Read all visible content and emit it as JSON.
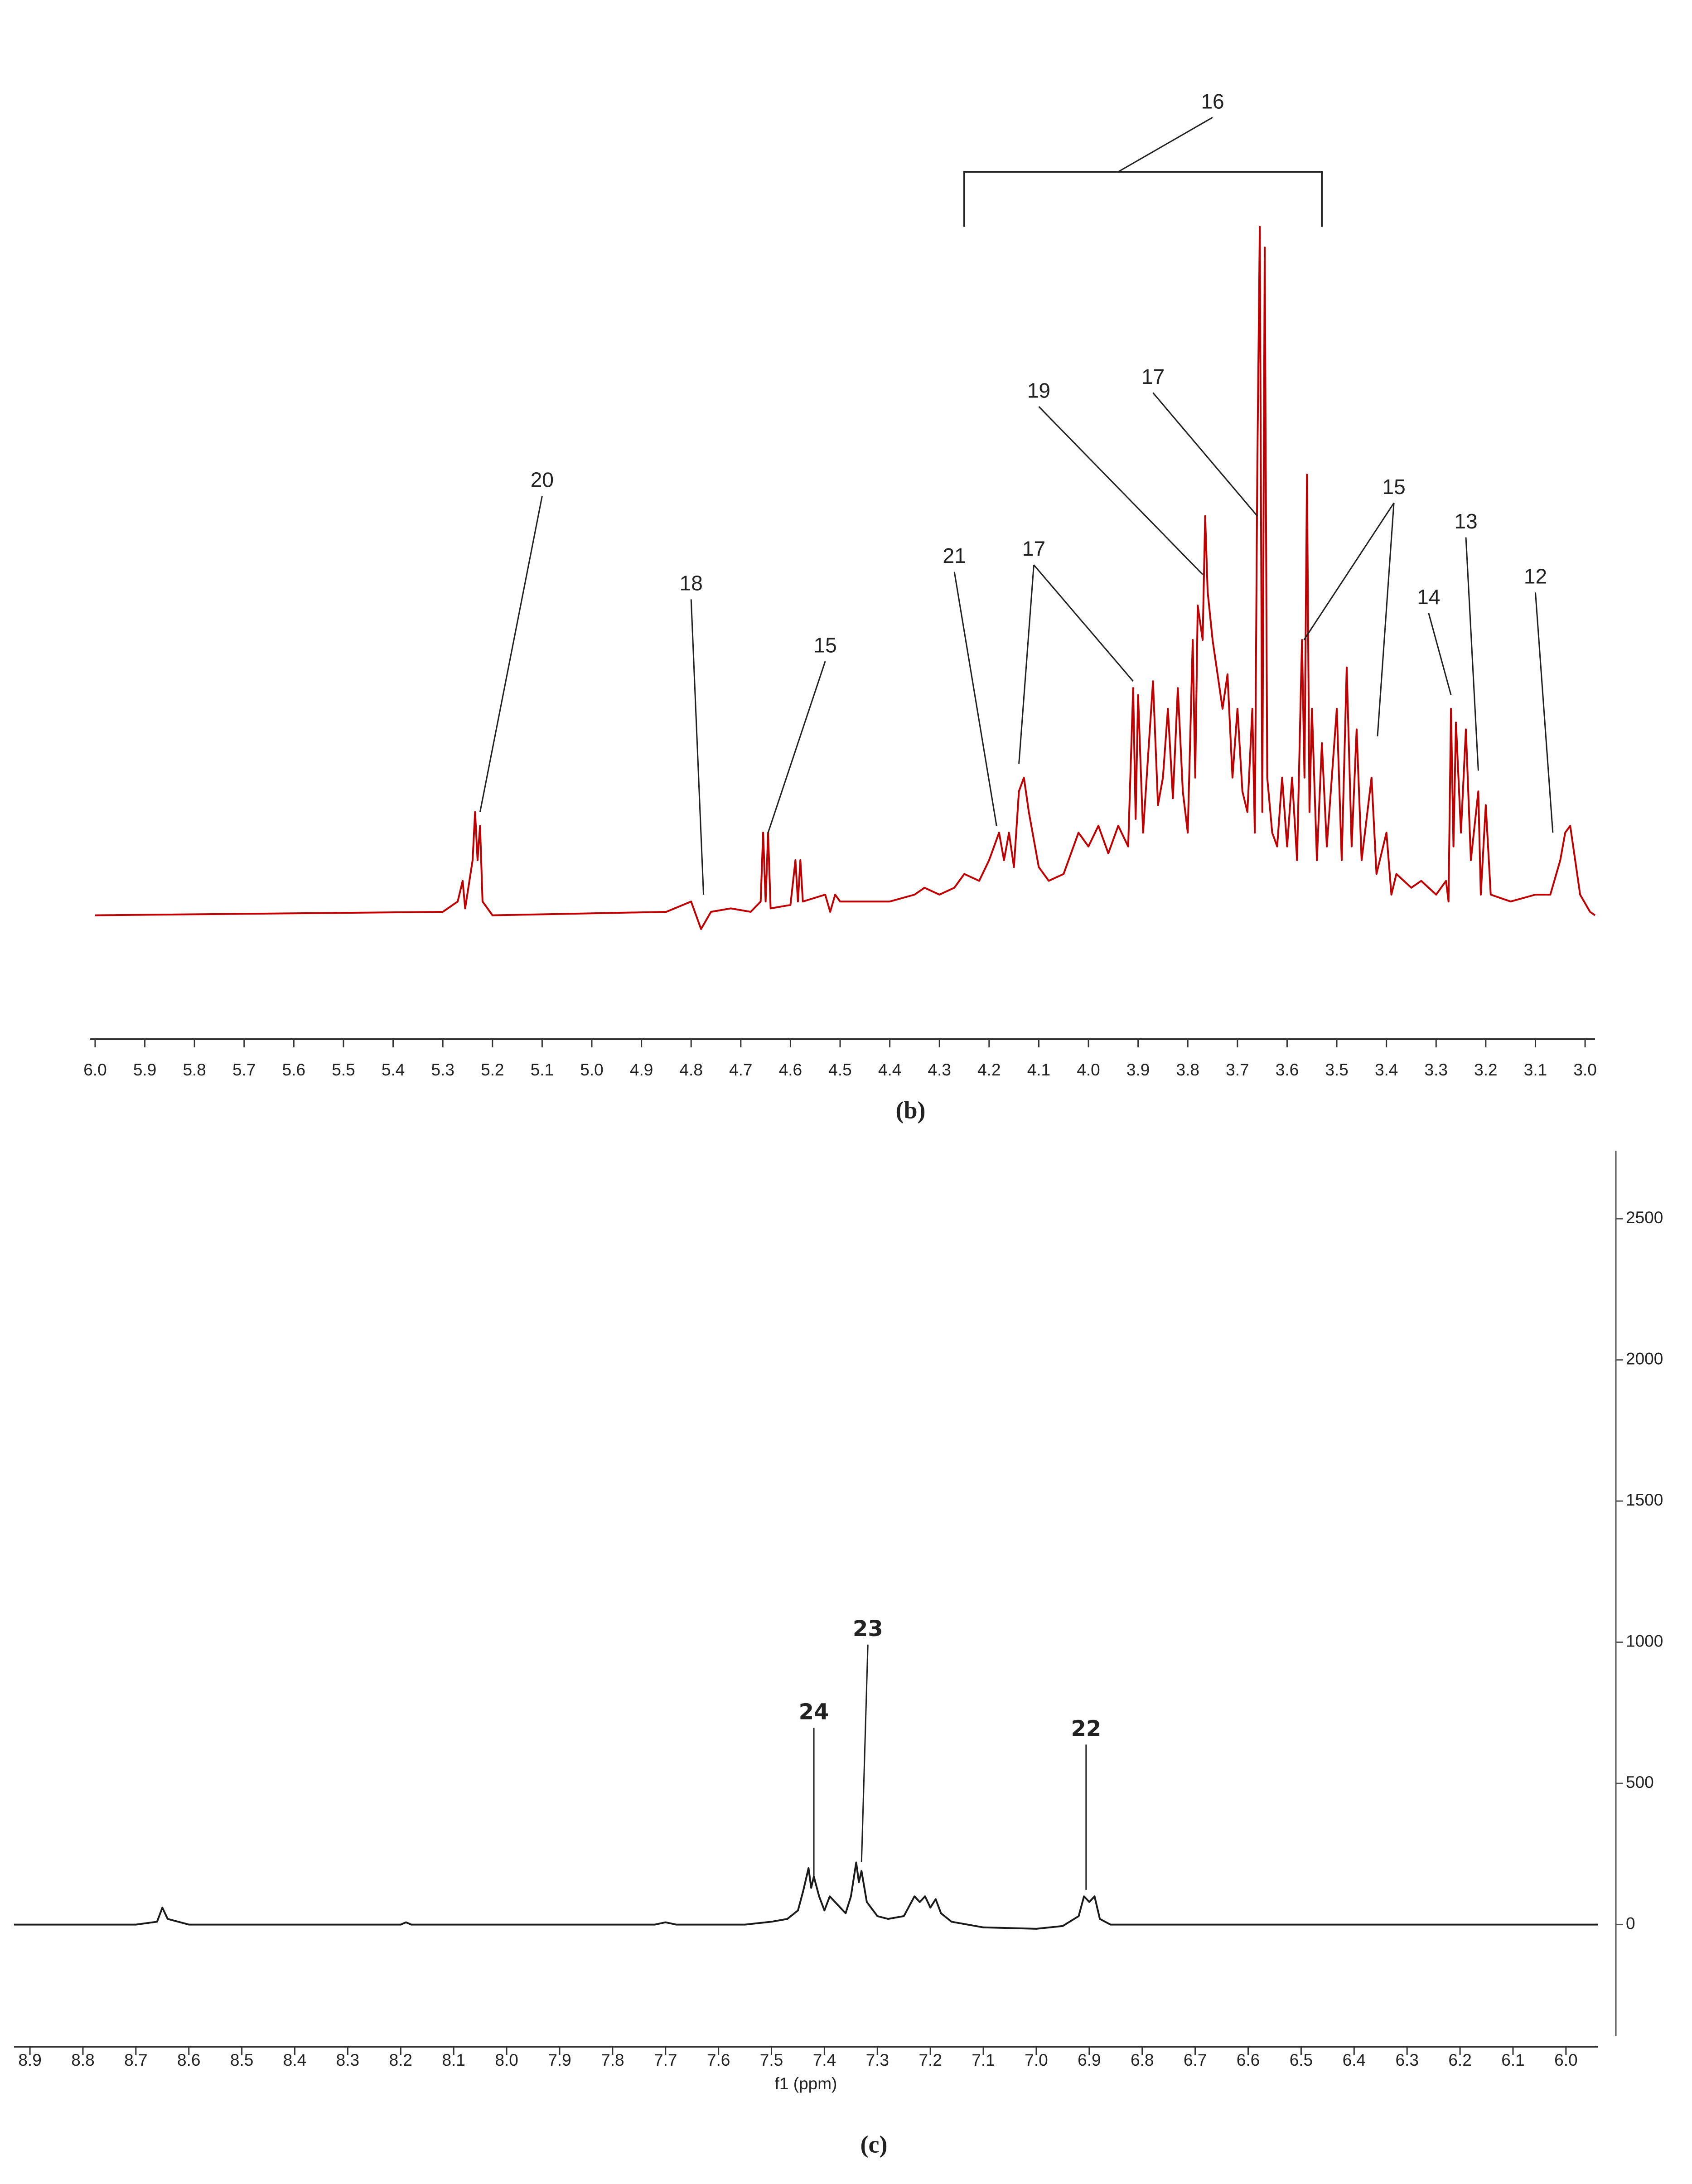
{
  "chart_data": [
    {
      "type": "line",
      "caption": "(b)",
      "xlim": [
        6.01,
        2.98
      ],
      "ylim": [
        -18,
        129
      ],
      "xticks": [
        {
          "value": 6,
          "label": "6.0"
        },
        5.9,
        5.8,
        5.7,
        5.6,
        5.5,
        5.4,
        5.3,
        5.2,
        5.1,
        {
          "value": 5,
          "label": "5.0"
        },
        4.9,
        4.8,
        4.7,
        4.6,
        4.5,
        4.4,
        4.3,
        4.2,
        4.1,
        {
          "value": 4,
          "label": "4.0"
        },
        3.9,
        3.8,
        3.7,
        3.6,
        3.5,
        3.4,
        3.3,
        3.2,
        3.1,
        {
          "value": 3,
          "label": "3.0"
        }
      ],
      "series": [
        {
          "color": "#c00000",
          "x": [
            6.0,
            5.3,
            5.27,
            5.26,
            5.255,
            5.24,
            5.235,
            5.23,
            5.225,
            5.22,
            5.2,
            4.85,
            4.8,
            4.78,
            4.76,
            4.72,
            4.68,
            4.66,
            4.655,
            4.65,
            4.645,
            4.64,
            4.6,
            4.59,
            4.585,
            4.58,
            4.575,
            4.53,
            4.52,
            4.51,
            4.5,
            4.4,
            4.35,
            4.33,
            4.3,
            4.27,
            4.25,
            4.22,
            4.2,
            4.18,
            4.17,
            4.16,
            4.15,
            4.14,
            4.13,
            4.12,
            4.1,
            4.08,
            4.05,
            4.02,
            4.0,
            3.98,
            3.96,
            3.94,
            3.92,
            3.91,
            3.905,
            3.9,
            3.89,
            3.87,
            3.86,
            3.85,
            3.84,
            3.83,
            3.82,
            3.81,
            3.8,
            3.79,
            3.785,
            3.78,
            3.77,
            3.765,
            3.76,
            3.75,
            3.74,
            3.73,
            3.72,
            3.71,
            3.7,
            3.69,
            3.68,
            3.67,
            3.665,
            3.66,
            3.655,
            3.65,
            3.645,
            3.64,
            3.63,
            3.62,
            3.61,
            3.6,
            3.59,
            3.58,
            3.57,
            3.565,
            3.56,
            3.555,
            3.55,
            3.54,
            3.53,
            3.52,
            3.5,
            3.49,
            3.48,
            3.47,
            3.46,
            3.45,
            3.43,
            3.42,
            3.4,
            3.39,
            3.38,
            3.35,
            3.33,
            3.3,
            3.28,
            3.275,
            3.27,
            3.265,
            3.26,
            3.25,
            3.24,
            3.23,
            3.215,
            3.21,
            3.2,
            3.19,
            3.15,
            3.1,
            3.07,
            3.05,
            3.04,
            3.03,
            3.02,
            3.01,
            2.99,
            2.98
          ],
          "values": [
            0,
            0.5,
            2,
            5,
            1,
            8,
            15,
            8,
            13,
            2,
            0,
            0.5,
            2,
            -2,
            0.5,
            1,
            0.5,
            2,
            12,
            2,
            12,
            1,
            1.5,
            8,
            2,
            8,
            2,
            3,
            0.5,
            3,
            2,
            2,
            3,
            4,
            3,
            4,
            6,
            5,
            8,
            12,
            8,
            12,
            7,
            18,
            20,
            15,
            7,
            5,
            6,
            12,
            10,
            13,
            9,
            13,
            10,
            33,
            14,
            32,
            12,
            34,
            16,
            20,
            30,
            17,
            33,
            18,
            12,
            40,
            20,
            45,
            40,
            58,
            47,
            40,
            35,
            30,
            35,
            20,
            30,
            18,
            15,
            30,
            12,
            65,
            100,
            15,
            97,
            20,
            12,
            10,
            20,
            10,
            20,
            8,
            40,
            20,
            64,
            15,
            30,
            8,
            25,
            10,
            30,
            8,
            36,
            10,
            27,
            8,
            20,
            6,
            12,
            3,
            6,
            4,
            5,
            3,
            5,
            2,
            30,
            10,
            28,
            12,
            27,
            8,
            18,
            3,
            16,
            3,
            2,
            3,
            3,
            8,
            12,
            13,
            8,
            3,
            0.5,
            0
          ]
        }
      ],
      "annotations": [
        {
          "text": "20",
          "x": 5.1,
          "y": 63,
          "targets": [
            [
              5.225,
              15
            ]
          ]
        },
        {
          "text": "18",
          "x": 4.8,
          "y": 48,
          "targets": [
            [
              4.775,
              3
            ]
          ]
        },
        {
          "text": "15",
          "x": 4.53,
          "y": 39,
          "targets": [
            [
              4.645,
              12
            ]
          ]
        },
        {
          "text": "21",
          "x": 4.27,
          "y": 52,
          "targets": [
            [
              4.185,
              13
            ]
          ]
        },
        {
          "text": "17",
          "x": 4.11,
          "y": 53,
          "targets": [
            [
              4.14,
              22
            ],
            [
              3.91,
              34
            ]
          ]
        },
        {
          "text": "19",
          "x": 4.1,
          "y": 76,
          "targets": [
            [
              3.77,
              49.5
            ]
          ]
        },
        {
          "text": "17",
          "x": 3.87,
          "y": 78,
          "targets": [
            [
              3.66,
              58
            ]
          ]
        },
        {
          "text": "15",
          "x": 3.385,
          "y": 62,
          "targets": [
            [
              3.566,
              40
            ],
            [
              3.418,
              26
            ]
          ]
        },
        {
          "text": "13",
          "x": 3.24,
          "y": 57,
          "targets": [
            [
              3.215,
              21
            ]
          ]
        },
        {
          "text": "14",
          "x": 3.315,
          "y": 46,
          "targets": [
            [
              3.27,
              32
            ]
          ]
        },
        {
          "text": "12",
          "x": 3.1,
          "y": 49,
          "targets": [
            [
              3.065,
              12
            ]
          ]
        },
        {
          "text": "16",
          "x": 3.75,
          "y": 118,
          "targets": [
            [
              3.94,
              108
            ]
          ],
          "bracket": [
            4.25,
            3.53
          ],
          "bracket_y": 108,
          "bracket_foot": 100
        }
      ]
    },
    {
      "type": "line",
      "caption": "(c)",
      "xlabel": "f1 (ppm)",
      "y_axis_side": "right",
      "xlim": [
        8.93,
        5.94
      ],
      "ylim": [
        -394,
        2741
      ],
      "xticks": [
        8.9,
        8.8,
        8.7,
        8.6,
        8.5,
        8.4,
        8.3,
        8.2,
        8.1,
        {
          "value": 8,
          "label": "8.0"
        },
        7.9,
        7.8,
        7.7,
        7.6,
        7.5,
        7.4,
        7.3,
        7.2,
        7.1,
        {
          "value": 7,
          "label": "7.0"
        },
        6.9,
        6.8,
        6.7,
        6.6,
        6.5,
        6.4,
        6.3,
        6.2,
        6.1,
        {
          "value": 6,
          "label": "6.0"
        }
      ],
      "yticks": [
        0,
        500,
        1000,
        1500,
        2000,
        2500
      ],
      "series": [
        {
          "color": "#1a1a1a",
          "x": [
            8.93,
            8.7,
            8.66,
            8.65,
            8.64,
            8.62,
            8.6,
            8.2,
            8.19,
            8.18,
            7.72,
            7.7,
            7.68,
            7.55,
            7.5,
            7.47,
            7.45,
            7.44,
            7.43,
            7.425,
            7.42,
            7.41,
            7.4,
            7.39,
            7.38,
            7.37,
            7.36,
            7.35,
            7.34,
            7.335,
            7.33,
            7.32,
            7.3,
            7.28,
            7.25,
            7.23,
            7.22,
            7.21,
            7.2,
            7.19,
            7.18,
            7.16,
            7.1,
            7.0,
            6.95,
            6.92,
            6.91,
            6.9,
            6.89,
            6.88,
            6.86,
            6.8,
            5.94
          ],
          "values": [
            0,
            0,
            10,
            60,
            20,
            10,
            0,
            0,
            8,
            0,
            0,
            8,
            0,
            0,
            10,
            20,
            50,
            120,
            200,
            130,
            170,
            100,
            50,
            100,
            80,
            60,
            40,
            100,
            220,
            150,
            190,
            80,
            30,
            20,
            30,
            100,
            80,
            100,
            60,
            90,
            40,
            10,
            -10,
            -15,
            -5,
            30,
            100,
            80,
            100,
            20,
            0,
            0,
            0
          ]
        }
      ],
      "annotations": [
        {
          "text": "24",
          "x": 7.42,
          "y": 748,
          "targets": [
            [
              7.42,
              172
            ]
          ]
        },
        {
          "text": "23",
          "x": 7.318,
          "y": 1043,
          "targets": [
            [
              7.33,
              221
            ]
          ]
        },
        {
          "text": "22",
          "x": 6.906,
          "y": 689,
          "targets": [
            [
              6.906,
              123
            ]
          ]
        }
      ]
    }
  ]
}
